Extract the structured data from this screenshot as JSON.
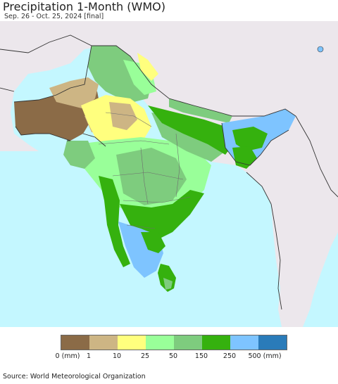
{
  "title": "Precipitation 1-Month (WMO)",
  "subtitle": "Sep. 26 - Oct. 25, 2024 [final]",
  "source": "Source: World Meteorological Organization",
  "colors": {
    "ocean": "#c4f7ff",
    "outside_land": "#ece7ec",
    "border": "#333333",
    "state_border": "#6d6d6d"
  },
  "legend": {
    "colors": [
      "#8b6b47",
      "#cdb584",
      "#ffff7e",
      "#99ff99",
      "#7ecc7e",
      "#35b10e",
      "#7ec4ff",
      "#2a7bb9"
    ],
    "labels": [
      "0 (mm)",
      "1",
      "10",
      "25",
      "50",
      "150",
      "250",
      "500 (mm)"
    ]
  }
}
